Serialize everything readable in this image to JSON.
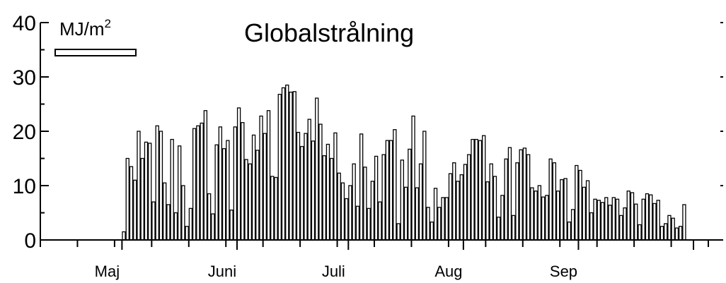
{
  "chart_data": {
    "type": "bar",
    "title": "Globalstrålning",
    "unit": {
      "base": "MJ/m",
      "exponent": "2"
    },
    "ylim": [
      0,
      40
    ],
    "y_ticks": [
      "0",
      "10",
      "20",
      "30",
      "40"
    ],
    "months": [
      {
        "label": "Maj",
        "start_day": 1
      },
      {
        "label": "Juni",
        "start_day": 32
      },
      {
        "label": "Juli",
        "start_day": 62
      },
      {
        "label": "Aug",
        "start_day": 93
      },
      {
        "label": "Sep",
        "start_day": 124
      }
    ],
    "x_range_days": [
      -21,
      163
    ],
    "start_day": 1,
    "values": [
      1.5,
      15,
      13.5,
      11,
      20,
      15,
      18,
      17.8,
      7,
      21,
      20,
      10.5,
      6.5,
      18.5,
      5,
      17.3,
      10,
      2.5,
      5.8,
      20.5,
      21,
      21.5,
      23.8,
      8.5,
      4.8,
      17.5,
      20.8,
      16.8,
      18.3,
      5.5,
      20.8,
      24.3,
      21.6,
      14.8,
      14,
      19.3,
      16.5,
      22.8,
      19.6,
      23.8,
      11.7,
      11.5,
      26.8,
      28,
      28.5,
      27.2,
      27.3,
      19.8,
      17.2,
      19.6,
      22.2,
      18.2,
      26.1,
      21.3,
      15.5,
      17.6,
      15,
      19.7,
      12.3,
      10.5,
      7.6,
      10,
      14,
      6.2,
      19.5,
      13.4,
      5.8,
      10.8,
      15.4,
      7,
      15.7,
      18.3,
      18.3,
      20.3,
      3,
      14.7,
      9.7,
      16.7,
      22.8,
      9.6,
      14,
      20,
      6,
      3.3,
      9.5,
      6,
      7.8,
      7.8,
      12.2,
      14.2,
      10.8,
      12,
      13.9,
      15.7,
      18.5,
      18.5,
      18.3,
      19.2,
      10.7,
      14,
      11.7,
      4.2,
      8.2,
      14.9,
      17,
      4.5,
      14.2,
      16.6,
      16.9,
      15.7,
      9.6,
      9,
      10,
      7.9,
      8.2,
      14.9,
      14.2,
      9,
      11.1,
      11.3,
      3.3,
      5.6,
      13.7,
      12.8,
      9.7,
      10.9,
      5,
      7.5,
      7.3,
      6.9,
      7.8,
      6.4,
      7.8,
      7.5,
      4.5,
      5.9,
      9,
      8.7,
      6.6,
      2.8,
      7.5,
      8.5,
      8.3,
      6.7,
      7.3,
      2.5,
      3,
      4.5,
      4,
      2.2,
      2.5,
      6.5
    ]
  }
}
